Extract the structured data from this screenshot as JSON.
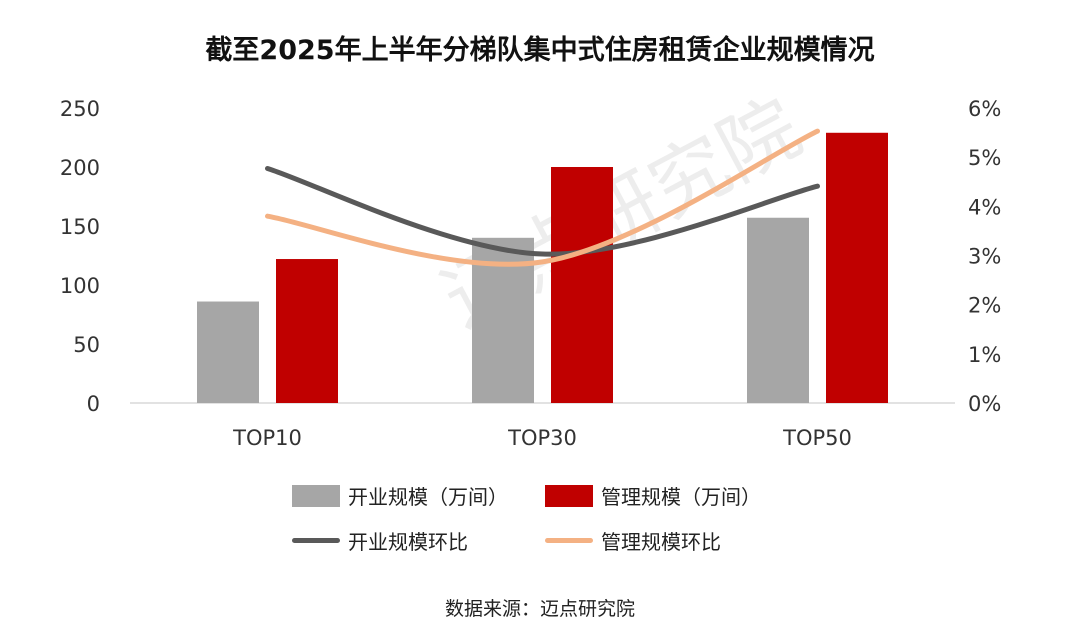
{
  "chart_data": {
    "type": "bar",
    "title": "截至2025年上半年分梯队集中式住房租赁企业规模情况",
    "categories": [
      "TOP10",
      "TOP30",
      "TOP50"
    ],
    "series": [
      {
        "name": "开业规模（万间）",
        "type": "bar",
        "axis": "left",
        "color": "#a6a6a6",
        "values": [
          86,
          140,
          157
        ]
      },
      {
        "name": "管理规模（万间）",
        "type": "bar",
        "axis": "left",
        "color": "#c00000",
        "values": [
          122,
          200,
          229
        ]
      },
      {
        "name": "开业规模环比",
        "type": "line",
        "axis": "right",
        "color": "#595959",
        "values": [
          4.77,
          3.03,
          4.41
        ]
      },
      {
        "name": "管理规模环比",
        "type": "line",
        "axis": "right",
        "color": "#f4b183",
        "values": [
          3.8,
          2.87,
          5.53
        ]
      }
    ],
    "left_axis": {
      "ylim": [
        0,
        250
      ],
      "ticks": [
        "0",
        "50",
        "100",
        "150",
        "200",
        "250"
      ]
    },
    "right_axis": {
      "ylim": [
        0,
        6
      ],
      "ticks": [
        "0%",
        "1%",
        "2%",
        "3%",
        "4%",
        "5%",
        "6%"
      ]
    },
    "legend_position": "bottom",
    "grid": false
  },
  "watermark": "迈点研究院",
  "source": "数据来源：迈点研究院"
}
